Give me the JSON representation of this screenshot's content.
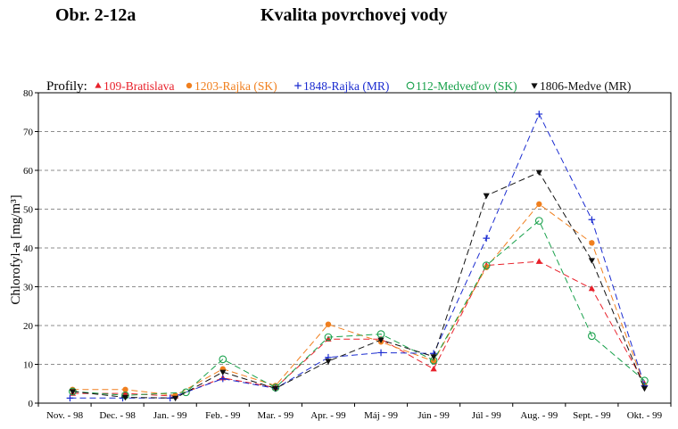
{
  "figure_label": "Obr. 2-12a",
  "figure_title": "Kvalita povrchovej vody",
  "chart_data": {
    "type": "line",
    "title": "Kvalita povrchovej vody",
    "xlabel": "",
    "ylabel": "Chlorofyl-a [mg/m³]",
    "ylim": [
      0,
      80
    ],
    "yticks": [
      0,
      10,
      20,
      30,
      40,
      50,
      60,
      70,
      80
    ],
    "grid": "horizontal-dashed",
    "legend_title": "Profily:",
    "legend_placement": "top",
    "categories": [
      "Nov. - 98",
      "Dec. - 98",
      "Jan. - 99",
      "Feb. - 99",
      "Mar. - 99",
      "Apr. - 99",
      "Máj - 99",
      "Jún - 99",
      "Júl - 99",
      "Aug. - 99",
      "Sept. - 99",
      "Okt. - 99"
    ],
    "series": [
      {
        "name": "109-Bratislava",
        "color": "#e8202a",
        "marker": "triangle-up",
        "points": [
          [
            0.15,
            2.5
          ],
          [
            1.15,
            2.5
          ],
          [
            2.1,
            1.8
          ],
          [
            3.0,
            6.5
          ],
          [
            4.0,
            4.0
          ],
          [
            5.0,
            16.5
          ],
          [
            6.0,
            16.5
          ],
          [
            7.0,
            8.8
          ],
          [
            8.0,
            35.5
          ],
          [
            9.0,
            36.5
          ],
          [
            10.0,
            29.5
          ],
          [
            11.0,
            5.0
          ]
        ]
      },
      {
        "name": "1203-Rajka (SK)",
        "color": "#f07f1e",
        "marker": "circle-filled",
        "points": [
          [
            0.15,
            3.5
          ],
          [
            1.15,
            3.5
          ],
          [
            2.1,
            2.0
          ],
          [
            3.0,
            8.8
          ],
          [
            4.0,
            4.5
          ],
          [
            5.0,
            20.3
          ],
          [
            6.0,
            15.8
          ],
          [
            7.0,
            10.8
          ],
          [
            8.0,
            35.0
          ],
          [
            9.0,
            51.3
          ],
          [
            10.0,
            41.3
          ],
          [
            11.0,
            4.5
          ]
        ]
      },
      {
        "name": "1848-Rajka (MR)",
        "color": "#1a2bd0",
        "marker": "plus",
        "points": [
          [
            0.1,
            1.3
          ],
          [
            1.1,
            1.3
          ],
          [
            2.0,
            1.3
          ],
          [
            3.0,
            6.3
          ],
          [
            4.0,
            3.8
          ],
          [
            5.0,
            11.8
          ],
          [
            6.0,
            13.0
          ],
          [
            7.0,
            12.8
          ],
          [
            8.0,
            42.5
          ],
          [
            9.0,
            74.5
          ],
          [
            10.0,
            47.3
          ],
          [
            11.0,
            4.5
          ]
        ]
      },
      {
        "name": "112-Medveďov (SK)",
        "color": "#17a04a",
        "marker": "circle-open",
        "points": [
          [
            0.15,
            3.0
          ],
          [
            1.15,
            2.0
          ],
          [
            2.3,
            2.8
          ],
          [
            3.0,
            11.3
          ],
          [
            4.0,
            4.0
          ],
          [
            5.0,
            17.0
          ],
          [
            6.0,
            17.8
          ],
          [
            7.0,
            11.0
          ],
          [
            8.0,
            35.5
          ],
          [
            9.0,
            47.0
          ],
          [
            10.0,
            17.3
          ],
          [
            11.0,
            5.8
          ]
        ]
      },
      {
        "name": "1806-Medve (MR)",
        "color": "#111111",
        "marker": "triangle-down",
        "points": [
          [
            0.15,
            3.0
          ],
          [
            1.15,
            1.5
          ],
          [
            2.1,
            1.3
          ],
          [
            3.0,
            8.0
          ],
          [
            4.0,
            3.8
          ],
          [
            5.0,
            10.8
          ],
          [
            6.0,
            16.3
          ],
          [
            7.0,
            12.0
          ],
          [
            8.0,
            53.5
          ],
          [
            9.0,
            59.5
          ],
          [
            10.0,
            36.8
          ],
          [
            11.0,
            3.8
          ]
        ]
      }
    ]
  }
}
